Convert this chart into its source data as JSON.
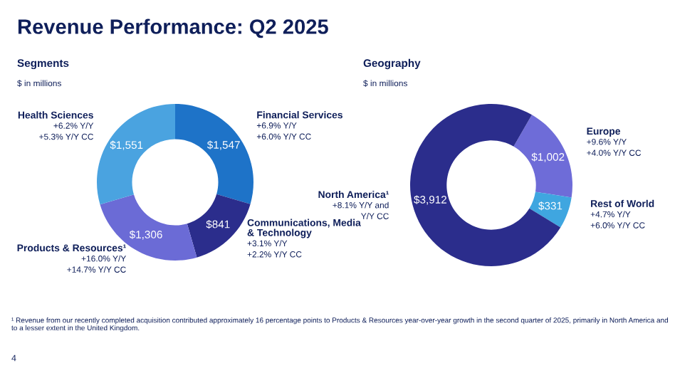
{
  "chart_data": [
    {
      "type": "donut",
      "title": "Revenue Performance: Q2 2025",
      "subtitle": "Segments",
      "categories": [
        "Financial Services",
        "Communications, Media\n& Technology",
        "Products & Resources¹",
        "Health Sciences"
      ],
      "values": [
        1547,
        841,
        1306,
        1551
      ],
      "value_labels": [
        "$1,547",
        "$841",
        "$1,306",
        "$1,551"
      ],
      "colors": [
        "#1e73c8",
        "#2b2d8c",
        "#6b6bd6",
        "#4aa3e0"
      ],
      "annotations": [
        "$ in millions",
        "+6.9% Y/Y\n+6.0% Y/Y CC",
        "+3.1% Y/Y\n+2.2% Y/Y CC",
        "+16.0% Y/Y\n+14.7% Y/Y CC",
        "+6.2% Y/Y\n+5.3% Y/Y CC",
        "¹ Revenue from our recently completed acquisition contributed approximately 16 percentage points to Products & Resources year-over-year growth in the second quarter of 2025, primarily in North America and to a lesser extent in the United Kingdom.",
        "4"
      ]
    },
    {
      "type": "donut",
      "subtitle": "Geography",
      "categories": [
        "Europe",
        "Rest of World",
        "North America¹"
      ],
      "values": [
        1002,
        331,
        3912
      ],
      "value_labels": [
        "$1,002",
        "$331",
        "$3,912"
      ],
      "colors": [
        "#6e6cd8",
        "#3fa6e0",
        "#2b2d8c"
      ],
      "annotations": [
        "$ in millions",
        "+9.6% Y/Y\n+4.0% Y/Y CC",
        "+4.7% Y/Y\n+6.0% Y/Y CC",
        "+8.1% Y/Y and\nY/Y CC"
      ]
    }
  ]
}
